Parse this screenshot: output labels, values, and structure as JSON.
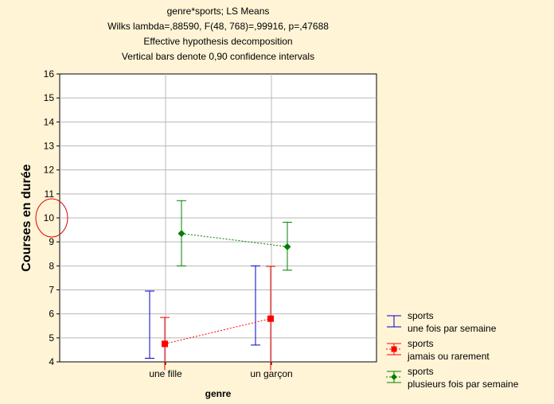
{
  "chart_data": {
    "type": "line",
    "title_lines": [
      "genre*sports; LS Means",
      "Wilks lambda=,88590, F(48, 768)=,99916, p=,47688",
      "Effective hypothesis decomposition",
      "Vertical bars denote 0,90 confidence intervals"
    ],
    "xlabel": "genre",
    "ylabel": "Courses en durée",
    "categories": [
      "une fille",
      "un garçon"
    ],
    "ylim": [
      4,
      16
    ],
    "yticks": [
      4,
      5,
      6,
      7,
      8,
      9,
      10,
      11,
      12,
      13,
      14,
      15,
      16
    ],
    "grid": true,
    "legend_position": "bottom-right",
    "series": [
      {
        "legend_lines": [
          "sports",
          "une fois par semaine"
        ],
        "color": "#0000cc",
        "marker": "none",
        "line_style": "none",
        "values": [
          5.55,
          6.35
        ],
        "ci_low": [
          4.15,
          4.7
        ],
        "ci_high": [
          6.95,
          8.0
        ]
      },
      {
        "legend_lines": [
          "sports",
          "jamais ou rarement"
        ],
        "color": "#ff0000",
        "marker": "square",
        "line_style": "dotted",
        "values": [
          4.75,
          5.8
        ],
        "ci_low": [
          3.65,
          3.65
        ],
        "ci_high": [
          5.85,
          7.98
        ]
      },
      {
        "legend_lines": [
          "sports",
          "plusieurs fois par semaine"
        ],
        "color": "#008000",
        "marker": "diamond",
        "line_style": "dotted",
        "values": [
          9.35,
          8.8
        ],
        "ci_low": [
          8.0,
          7.82
        ],
        "ci_high": [
          10.72,
          9.82
        ]
      }
    ],
    "annotation": {
      "type": "circle",
      "color": "#dd0000",
      "at_y_value": 10
    }
  }
}
